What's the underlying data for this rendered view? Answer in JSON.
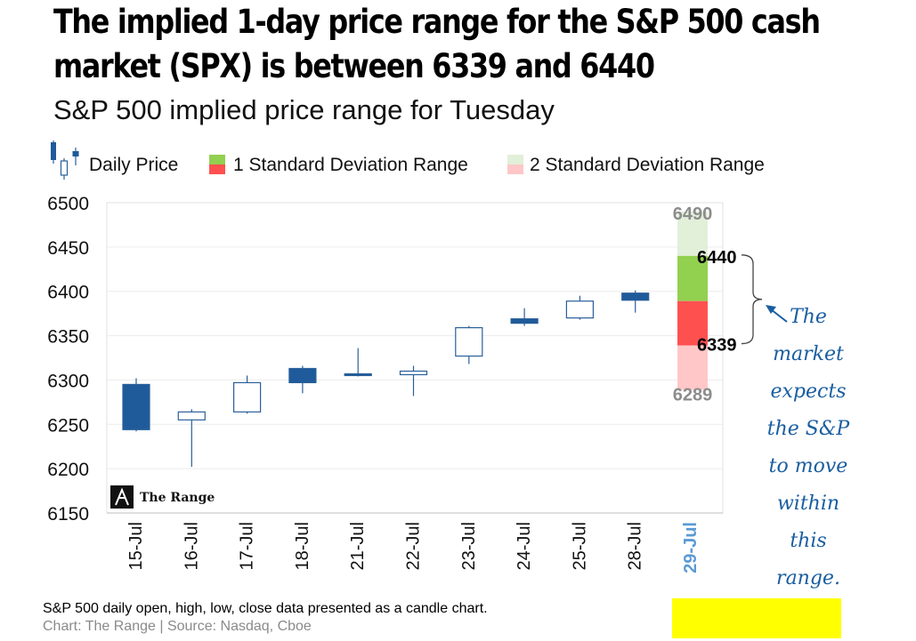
{
  "title_line1": "The implied 1-day price range for the S&P 500 cash",
  "title_line2": "market (SPX) is between 6339 and 6440",
  "subtitle": "S&P 500 implied price range for",
  "subtitle_day": "Tuesday",
  "legend": {
    "daily_price": "Daily Price",
    "sd1": "1 Standard Deviation Range",
    "sd2": "2 Standard Deviation Range"
  },
  "watermark": "The Range",
  "annotation_lines": [
    "The",
    "market",
    "expects",
    "the S&P",
    "to move",
    "within",
    "this",
    "range."
  ],
  "footer_line1": "S&P 500 daily open, high, low, close data presented as a candle chart.",
  "footer_line2": "Chart: The Range | Source: Nasdaq, Cboe",
  "colors": {
    "bullish": "#ffffff",
    "bearish": "#1f5b9a",
    "candle_stroke": "#2a5f99",
    "sd1_up": "#92d050",
    "sd1_down": "#ff5050",
    "sd2_up": "#e2efd9",
    "sd2_down": "#ffc7c7",
    "highlight_date": "#5b9bd5"
  },
  "chart_data": {
    "type": "candlestick",
    "ylim": [
      6150,
      6500
    ],
    "yticks": [
      6150,
      6200,
      6250,
      6300,
      6350,
      6400,
      6450,
      6500
    ],
    "categories": [
      "15-Jul",
      "16-Jul",
      "17-Jul",
      "18-Jul",
      "21-Jul",
      "22-Jul",
      "23-Jul",
      "24-Jul",
      "25-Jul",
      "28-Jul",
      "29-Jul"
    ],
    "candles": [
      {
        "date": "15-Jul",
        "open": 6295,
        "high": 6302,
        "low": 6242,
        "close": 6244
      },
      {
        "date": "16-Jul",
        "open": 6255,
        "high": 6267,
        "low": 6202,
        "close": 6264
      },
      {
        "date": "17-Jul",
        "open": 6264,
        "high": 6305,
        "low": 6262,
        "close": 6297
      },
      {
        "date": "18-Jul",
        "open": 6313,
        "high": 6316,
        "low": 6285,
        "close": 6297
      },
      {
        "date": "21-Jul",
        "open": 6307,
        "high": 6336,
        "low": 6304,
        "close": 6305
      },
      {
        "date": "22-Jul",
        "open": 6306,
        "high": 6316,
        "low": 6282,
        "close": 6310
      },
      {
        "date": "23-Jul",
        "open": 6327,
        "high": 6361,
        "low": 6318,
        "close": 6359
      },
      {
        "date": "24-Jul",
        "open": 6369,
        "high": 6381,
        "low": 6361,
        "close": 6364
      },
      {
        "date": "25-Jul",
        "open": 6370,
        "high": 6395,
        "low": 6368,
        "close": 6389
      },
      {
        "date": "28-Jul",
        "open": 6398,
        "high": 6401,
        "low": 6376,
        "close": 6390
      }
    ],
    "range": {
      "date": "29-Jul",
      "mid": 6389,
      "sd1_low": 6339,
      "sd1_high": 6440,
      "sd2_low": 6289,
      "sd2_high": 6490,
      "labels": {
        "sd2_high": "6490",
        "sd1_high": "6440",
        "sd1_low": "6339",
        "sd2_low": "6289"
      }
    }
  }
}
